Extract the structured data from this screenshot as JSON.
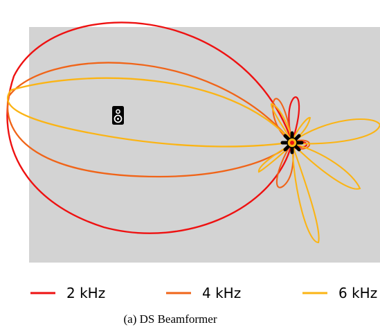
{
  "chart_data": {
    "type": "polar-beampattern",
    "series": [
      {
        "name": "2 kHz",
        "color": "#ee1111"
      },
      {
        "name": "4 kHz",
        "color": "#f06418"
      },
      {
        "name": "6 kHz",
        "color": "#fbb414"
      }
    ],
    "source_icon": "speaker-icon",
    "array_icon": "microphone-array-icon",
    "background_color": "#d3d3d3"
  },
  "legend": {
    "items": [
      {
        "label": "2 kHz"
      },
      {
        "label": "4 kHz"
      },
      {
        "label": "6 kHz"
      }
    ]
  },
  "caption": "(a) DS Beamformer"
}
